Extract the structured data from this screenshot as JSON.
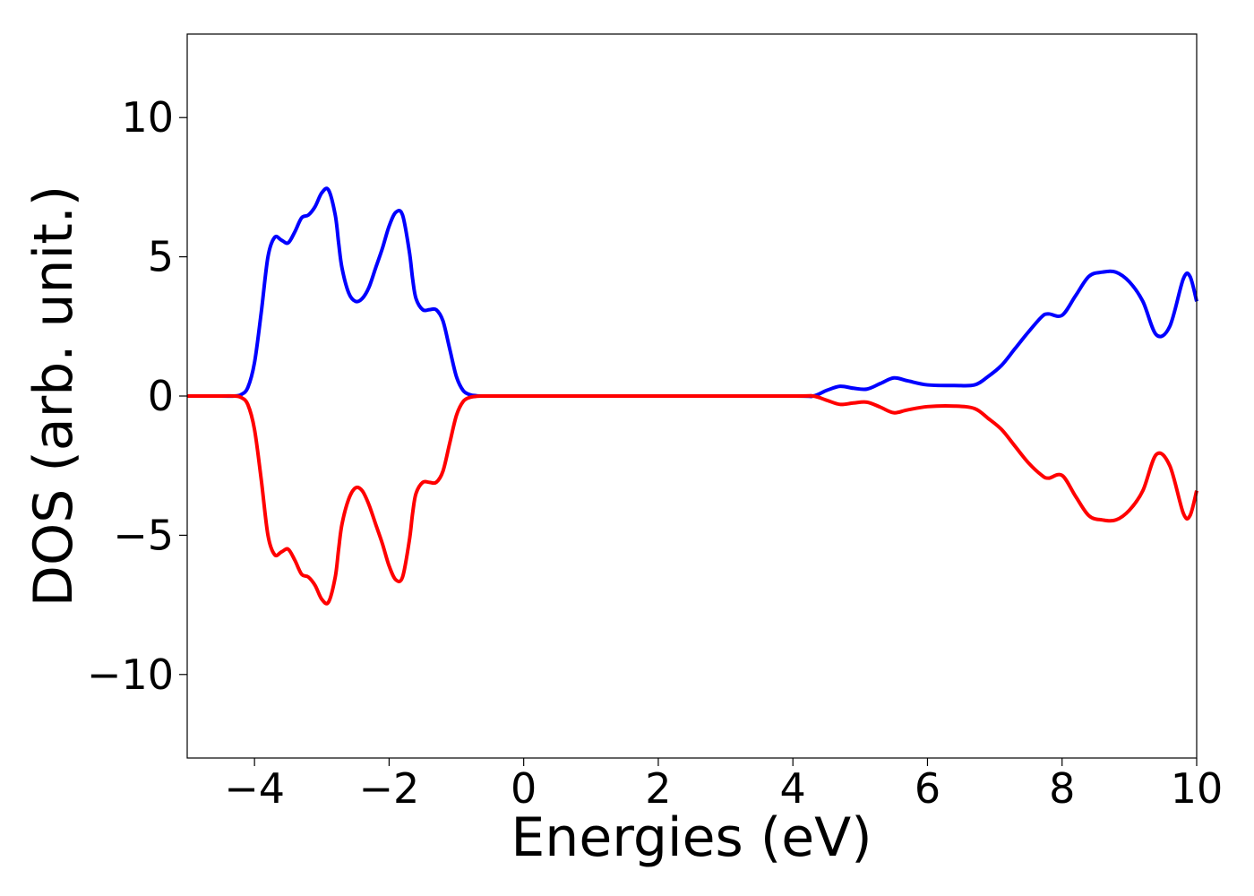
{
  "chart_data": {
    "type": "line",
    "title": "",
    "xlabel": "Energies (eV)",
    "ylabel": "DOS (arb. unit.)",
    "xlim": [
      -5,
      10
    ],
    "ylim": [
      -13,
      13
    ],
    "xticks": [
      -4,
      -2,
      0,
      2,
      4,
      6,
      8,
      10
    ],
    "xtick_labels": [
      "−4",
      "−2",
      "0",
      "2",
      "4",
      "6",
      "8",
      "10"
    ],
    "yticks": [
      -10,
      -5,
      0,
      5,
      10
    ],
    "ytick_labels": [
      "−10",
      "−5",
      "0",
      "5",
      "10"
    ],
    "grid": false,
    "legend": "none",
    "series": [
      {
        "color": "#0000ff",
        "x": [
          -5.0,
          -4.5,
          -4.3,
          -4.2,
          -4.1,
          -4.0,
          -3.9,
          -3.8,
          -3.7,
          -3.6,
          -3.5,
          -3.4,
          -3.3,
          -3.2,
          -3.1,
          -3.0,
          -2.9,
          -2.8,
          -2.75,
          -2.7,
          -2.6,
          -2.5,
          -2.4,
          -2.3,
          -2.2,
          -2.1,
          -2.0,
          -1.9,
          -1.8,
          -1.7,
          -1.65,
          -1.6,
          -1.5,
          -1.4,
          -1.3,
          -1.2,
          -1.1,
          -1.0,
          -0.9,
          -0.8,
          -0.7,
          -0.6,
          -0.5,
          0.0,
          2.0,
          4.0,
          4.3,
          4.5,
          4.7,
          4.9,
          5.1,
          5.3,
          5.5,
          5.7,
          6.0,
          6.4,
          6.7,
          6.9,
          7.1,
          7.3,
          7.5,
          7.7,
          7.8,
          8.0,
          8.2,
          8.4,
          8.6,
          8.8,
          9.0,
          9.2,
          9.4,
          9.6,
          9.8,
          9.9,
          10.0
        ],
        "y": [
          0.0,
          0.0,
          0.0,
          0.05,
          0.3,
          1.2,
          3.0,
          5.0,
          5.7,
          5.6,
          5.5,
          5.9,
          6.4,
          6.5,
          6.8,
          7.3,
          7.4,
          6.5,
          5.5,
          4.6,
          3.7,
          3.4,
          3.5,
          3.9,
          4.6,
          5.3,
          6.1,
          6.6,
          6.5,
          5.2,
          4.2,
          3.5,
          3.1,
          3.1,
          3.1,
          2.7,
          1.7,
          0.7,
          0.2,
          0.05,
          0.01,
          0.0,
          0.0,
          0.0,
          0.0,
          0.0,
          0.0,
          0.2,
          0.35,
          0.28,
          0.25,
          0.45,
          0.65,
          0.55,
          0.4,
          0.38,
          0.4,
          0.7,
          1.1,
          1.7,
          2.3,
          2.85,
          2.95,
          2.9,
          3.6,
          4.3,
          4.45,
          4.45,
          4.1,
          3.4,
          2.2,
          2.5,
          4.2,
          4.3,
          3.4
        ]
      },
      {
        "color": "#ff0000",
        "x": [
          -5.0,
          -4.5,
          -4.3,
          -4.2,
          -4.1,
          -4.0,
          -3.9,
          -3.8,
          -3.7,
          -3.6,
          -3.5,
          -3.4,
          -3.3,
          -3.2,
          -3.1,
          -3.0,
          -2.9,
          -2.8,
          -2.75,
          -2.7,
          -2.6,
          -2.5,
          -2.4,
          -2.3,
          -2.2,
          -2.1,
          -2.0,
          -1.9,
          -1.8,
          -1.7,
          -1.65,
          -1.6,
          -1.5,
          -1.4,
          -1.3,
          -1.2,
          -1.1,
          -1.0,
          -0.9,
          -0.8,
          -0.7,
          -0.6,
          -0.5,
          0.0,
          2.0,
          4.0,
          4.3,
          4.5,
          4.7,
          4.9,
          5.1,
          5.3,
          5.5,
          5.7,
          6.0,
          6.4,
          6.7,
          6.9,
          7.1,
          7.3,
          7.5,
          7.7,
          7.8,
          8.0,
          8.2,
          8.4,
          8.6,
          8.8,
          9.0,
          9.2,
          9.4,
          9.6,
          9.8,
          9.9,
          10.0
        ],
        "y": [
          0.0,
          0.0,
          0.0,
          -0.05,
          -0.3,
          -1.2,
          -3.0,
          -5.0,
          -5.7,
          -5.6,
          -5.5,
          -5.9,
          -6.4,
          -6.5,
          -6.8,
          -7.3,
          -7.4,
          -6.5,
          -5.5,
          -4.6,
          -3.7,
          -3.3,
          -3.4,
          -3.9,
          -4.6,
          -5.3,
          -6.1,
          -6.6,
          -6.5,
          -5.2,
          -4.2,
          -3.5,
          -3.1,
          -3.1,
          -3.1,
          -2.7,
          -1.7,
          -0.7,
          -0.2,
          -0.05,
          -0.01,
          0.0,
          0.0,
          0.0,
          0.0,
          0.0,
          0.0,
          -0.15,
          -0.3,
          -0.25,
          -0.22,
          -0.4,
          -0.6,
          -0.5,
          -0.38,
          -0.36,
          -0.45,
          -0.8,
          -1.2,
          -1.8,
          -2.4,
          -2.85,
          -2.95,
          -2.85,
          -3.6,
          -4.3,
          -4.45,
          -4.45,
          -4.1,
          -3.4,
          -2.1,
          -2.5,
          -4.2,
          -4.3,
          -3.4
        ]
      }
    ]
  }
}
